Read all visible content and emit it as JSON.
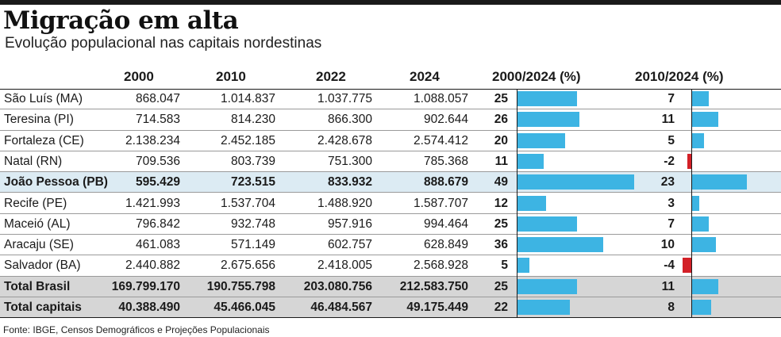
{
  "title": "Migração em alta",
  "subtitle": "Evolução populacional nas capitais nordestinas",
  "source": "Fonte: IBGE, Censos Demográficos e Projeções Populacionais",
  "colors": {
    "bar_positive": "#3db4e3",
    "bar_negative": "#d32027",
    "highlight_row": "#dcebf3",
    "total_row": "#d6d6d6"
  },
  "chart_data": {
    "type": "table",
    "columns": [
      "2000",
      "2010",
      "2022",
      "2024",
      "2000/2024 (%)",
      "2010/2024 (%)"
    ],
    "rows": [
      {
        "name": "São Luís (MA)",
        "v2000": "868.047",
        "v2010": "1.014.837",
        "v2022": "1.037.775",
        "v2024": "1.088.057",
        "p1": 25,
        "p2": 7,
        "style": "normal"
      },
      {
        "name": "Teresina (PI)",
        "v2000": "714.583",
        "v2010": "814.230",
        "v2022": "866.300",
        "v2024": "902.644",
        "p1": 26,
        "p2": 11,
        "style": "normal"
      },
      {
        "name": "Fortaleza (CE)",
        "v2000": "2.138.234",
        "v2010": "2.452.185",
        "v2022": "2.428.678",
        "v2024": "2.574.412",
        "p1": 20,
        "p2": 5,
        "style": "normal"
      },
      {
        "name": "Natal (RN)",
        "v2000": "709.536",
        "v2010": "803.739",
        "v2022": "751.300",
        "v2024": "785.368",
        "p1": 11,
        "p2": -2,
        "style": "normal"
      },
      {
        "name": "João Pessoa (PB)",
        "v2000": "595.429",
        "v2010": "723.515",
        "v2022": "833.932",
        "v2024": "888.679",
        "p1": 49,
        "p2": 23,
        "style": "highlight"
      },
      {
        "name": "Recife (PE)",
        "v2000": "1.421.993",
        "v2010": "1.537.704",
        "v2022": "1.488.920",
        "v2024": "1.587.707",
        "p1": 12,
        "p2": 3,
        "style": "normal"
      },
      {
        "name": "Maceió (AL)",
        "v2000": "796.842",
        "v2010": "932.748",
        "v2022": "957.916",
        "v2024": "994.464",
        "p1": 25,
        "p2": 7,
        "style": "normal"
      },
      {
        "name": "Aracaju (SE)",
        "v2000": "461.083",
        "v2010": "571.149",
        "v2022": "602.757",
        "v2024": "628.849",
        "p1": 36,
        "p2": 10,
        "style": "normal"
      },
      {
        "name": "Salvador (BA)",
        "v2000": "2.440.882",
        "v2010": "2.675.656",
        "v2022": "2.418.005",
        "v2024": "2.568.928",
        "p1": 5,
        "p2": -4,
        "style": "normal"
      },
      {
        "name": "Total Brasil",
        "v2000": "169.799.170",
        "v2010": "190.755.798",
        "v2022": "203.080.756",
        "v2024": "212.583.750",
        "p1": 25,
        "p2": 11,
        "style": "total"
      },
      {
        "name": "Total capitais",
        "v2000": "40.388.490",
        "v2010": "45.466.045",
        "v2022": "46.484.567",
        "v2024": "49.175.449",
        "p1": 22,
        "p2": 8,
        "style": "total"
      }
    ]
  }
}
